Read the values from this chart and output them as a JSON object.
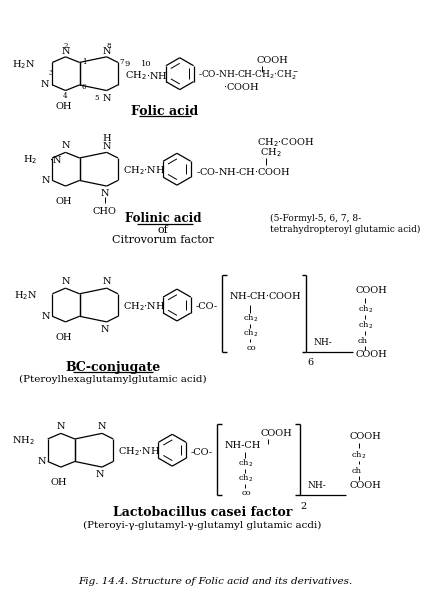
{
  "title": "Fig. 14.4. Structure of Folic acid and its derivatives.",
  "background": "#ffffff",
  "fig_width": 4.48,
  "fig_height": 6.11,
  "dpi": 100,
  "folic_acid_label": "Folic acid",
  "folinic_acid_label": "Folinic acid",
  "folinic_of": "of",
  "citrovorum": "Citrovorum factor",
  "folinic_desc": "(5-Formyl-5, 6, 7, 8-",
  "folinic_desc2": "tetrahydropteroyl glutamic acid)",
  "bc_label": "BC-conjugate",
  "bc_sub": "(Pteroylhexaglutamylglutamic acid)",
  "lc_label": "Lactobacillus casei factor",
  "lc_sub": "(Pteroyi-γ-glutamyl-γ-glutamyl glutamic acdi)",
  "caption": "Fig. 14.4. Structure of Folic acid and its derivatives."
}
